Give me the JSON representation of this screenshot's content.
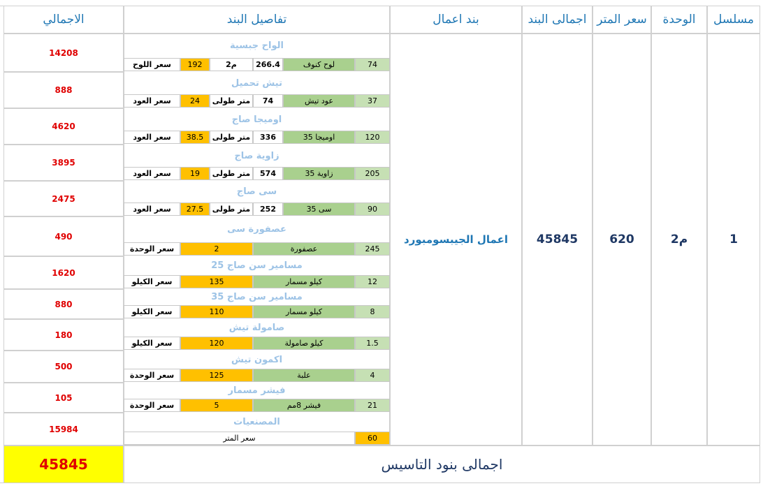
{
  "header": {
    "columns": [
      "الاجمالي",
      "تفاصيل البند",
      "بند اعمال",
      "اجمالى البند",
      "سعر المتر",
      "الوحدة",
      "مسلسل"
    ]
  },
  "row": {
    "serial": "1",
    "unit": "م2",
    "price": "620",
    "item_total": "45845",
    "work": "اعمال الجيبسومبورد"
  },
  "items": [
    {
      "title": "الواح جبسية",
      "cells": [
        "74",
        "لوح كنوف",
        "266.4",
        "م2",
        "192",
        "سعر اللوح"
      ],
      "total": "14208"
    },
    {
      "title": "تيش تحميل",
      "cells": [
        "37",
        "عود تيش",
        "74",
        "متر طولى",
        "24",
        "سعر العود"
      ],
      "total": "888"
    },
    {
      "title": "اوميجا صاج",
      "cells": [
        "120",
        "اوميجا 35",
        "336",
        "متر طولى",
        "38.5",
        "سعر العود"
      ],
      "total": "4620"
    },
    {
      "title": "زاوية صاج",
      "cells": [
        "205",
        "زاوية 35",
        "574",
        "متر طولى",
        "19",
        "سعر العود"
      ],
      "total": "3895"
    },
    {
      "title": "سى صاج",
      "cells": [
        "90",
        "سى 35",
        "252",
        "متر طولى",
        "27.5",
        "سعر العود"
      ],
      "total": "2475"
    },
    {
      "title": "عصفورة سى",
      "cells": [
        "245",
        "عصفورة",
        "2",
        "سعر الوحدة"
      ],
      "total": "490"
    },
    {
      "title": "مسامير سن صاج 25",
      "cells": [
        "12",
        "كيلو مسمار",
        "135",
        "سعر الكيلو"
      ],
      "total": "1620"
    },
    {
      "title": "مسامير سن صاج 35",
      "cells": [
        "8",
        "كيلو مسمار",
        "110",
        "سعر الكيلو"
      ],
      "total": "880"
    },
    {
      "title": "صامولة تيش",
      "cells": [
        "1.5",
        "كيلو صامولة",
        "120",
        "سعر الكيلو"
      ],
      "total": "180"
    },
    {
      "title": "اكمون تيش",
      "cells": [
        "4",
        "علبة",
        "125",
        "سعر الوحدة"
      ],
      "total": "500"
    },
    {
      "title": "فيشر مسمار",
      "cells": [
        "21",
        "فيشر 8مم",
        "5",
        "سعر الوحدة"
      ],
      "total": "105"
    },
    {
      "title": "المصنعيات",
      "cells": [
        "60",
        "سعر المتر"
      ],
      "total": "15984"
    }
  ],
  "footer": {
    "label": "اجمالى بنود التاسيس",
    "total": "45845"
  }
}
